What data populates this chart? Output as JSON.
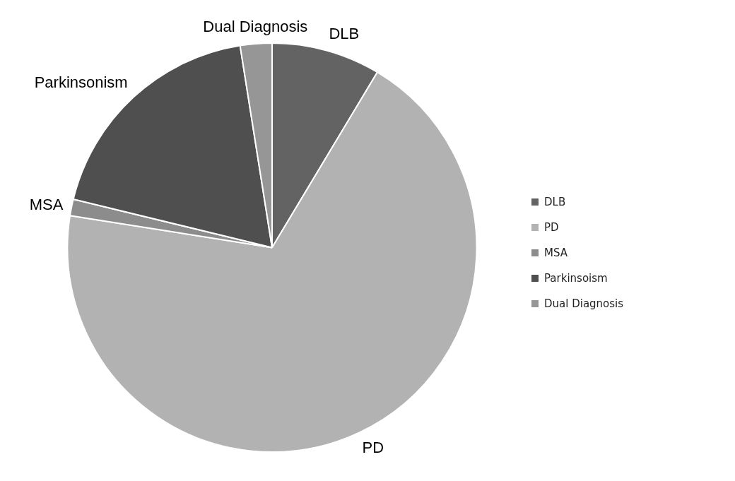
{
  "chart_data": {
    "type": "pie",
    "categories": [
      "DLB",
      "PD",
      "MSA",
      "Parkinsoism",
      "Dual Diagnosis"
    ],
    "values": [
      8.6,
      68.9,
      1.3,
      18.7,
      2.5
    ],
    "colors": [
      "#636363",
      "#b2b2b2",
      "#8c8c8c",
      "#4f4f4f",
      "#969696"
    ],
    "value_labels": [
      "DLB",
      "PD",
      "MSA",
      "Parkinsonism",
      "Dual Diagnosis"
    ],
    "legend": "right"
  }
}
